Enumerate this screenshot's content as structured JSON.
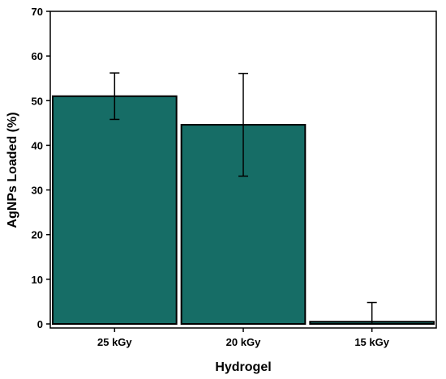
{
  "chart_data": {
    "type": "bar",
    "title": "",
    "xlabel": "Hydrogel",
    "ylabel": "AgNPs Loaded (%)",
    "categories": [
      "25 kGy",
      "20 kGy",
      "15 kGy"
    ],
    "values": [
      51.0,
      44.6,
      0.5
    ],
    "error": [
      5.2,
      11.5,
      4.3
    ],
    "ylim": [
      0,
      70
    ],
    "yticks": [
      0,
      10,
      20,
      30,
      40,
      50,
      60,
      70
    ],
    "grid": false,
    "legend": "none",
    "bar_color": "#166d66",
    "bar_edge_color": "#000000"
  }
}
